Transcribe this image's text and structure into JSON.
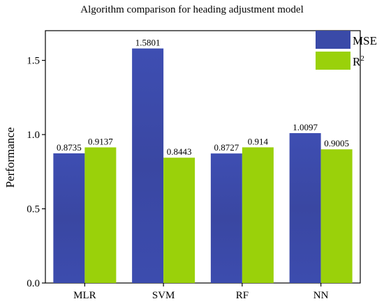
{
  "chart_data": {
    "type": "bar",
    "title": "Algorithm comparison for heading adjustment model",
    "xlabel": "",
    "ylabel": "Performance",
    "categories": [
      "MLR",
      "SVM",
      "RF",
      "NN"
    ],
    "series": [
      {
        "name": "MSE",
        "values": [
          0.8735,
          1.5801,
          0.8727,
          1.0097
        ],
        "labels": [
          "0.8735",
          "1.5801",
          "0.8727",
          "1.0097"
        ],
        "color": "#3a4aa8"
      },
      {
        "name": "R",
        "name_sup": "2",
        "values": [
          0.9137,
          0.8443,
          0.914,
          0.9005
        ],
        "labels": [
          "0.9137",
          "0.8443",
          "0.914",
          "0.9005"
        ],
        "color": "#9ad10a"
      }
    ],
    "ylim": [
      0,
      1.7
    ],
    "yticks": [
      "0.0",
      "0.5",
      "1.0",
      "1.5"
    ],
    "ytick_values": [
      0,
      0.5,
      1.0,
      1.5
    ],
    "grid": false,
    "legend": "top-right"
  }
}
